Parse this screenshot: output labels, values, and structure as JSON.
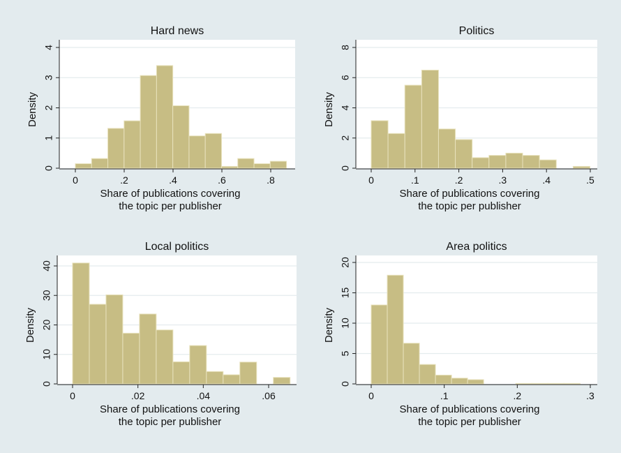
{
  "chart_data": [
    {
      "type": "bar",
      "title": "Hard news",
      "xlabel": [
        "Share of publications covering",
        "the topic per publisher"
      ],
      "ylabel": "Density",
      "xlim": [
        0,
        0.88
      ],
      "ylim": [
        0,
        4.2
      ],
      "xticks": [
        0,
        0.2,
        0.4,
        0.6,
        0.8
      ],
      "xtick_labels": [
        "0",
        ".2",
        ".4",
        ".6",
        ".8"
      ],
      "yticks": [
        0,
        1,
        2,
        3,
        4
      ],
      "ytick_labels": [
        "0",
        "1",
        "2",
        "3",
        "4"
      ],
      "grid": true,
      "bin_start": 0,
      "bin_width": 0.0665,
      "values": [
        0.15,
        0.32,
        1.32,
        1.57,
        3.07,
        3.4,
        2.07,
        1.07,
        1.15,
        0.06,
        0.32,
        0.15,
        0.23
      ]
    },
    {
      "type": "bar",
      "title": "Politics",
      "xlabel": [
        "Share of publications covering",
        "the topic per publisher"
      ],
      "ylabel": "Density",
      "xlim": [
        0,
        0.51
      ],
      "ylim": [
        0,
        8.4
      ],
      "xticks": [
        0,
        0.1,
        0.2,
        0.3,
        0.4,
        0.5
      ],
      "xtick_labels": [
        "0",
        ".1",
        ".2",
        ".3",
        ".4",
        ".5"
      ],
      "yticks": [
        0,
        2,
        4,
        6,
        8
      ],
      "ytick_labels": [
        "0",
        "2",
        "4",
        "6",
        "8"
      ],
      "grid": true,
      "bin_start": 0,
      "bin_width": 0.0384,
      "values": [
        3.15,
        2.3,
        5.5,
        6.5,
        2.6,
        1.9,
        0.7,
        0.85,
        1.0,
        0.85,
        0.55,
        0,
        0.12
      ]
    },
    {
      "type": "bar",
      "title": "Local politics",
      "xlabel": [
        "Share of publications covering",
        "the topic per publisher"
      ],
      "ylabel": "Density",
      "xlim": [
        0,
        0.067
      ],
      "ylim": [
        0,
        43
      ],
      "xticks": [
        0,
        0.02,
        0.04,
        0.06
      ],
      "xtick_labels": [
        "0",
        ".02",
        ".04",
        ".06"
      ],
      "yticks": [
        0,
        10,
        20,
        30,
        40
      ],
      "ytick_labels": [
        "0",
        "10",
        "20",
        "30",
        "40"
      ],
      "grid": true,
      "bin_start": 0,
      "bin_width": 0.00512,
      "values": [
        41,
        27,
        30.2,
        17.2,
        23.7,
        18.3,
        7.5,
        13,
        4.2,
        3.1,
        7.4,
        0,
        2.2
      ]
    },
    {
      "type": "bar",
      "title": "Area politics",
      "xlabel": [
        "Share of publications covering",
        "the topic per publisher"
      ],
      "ylabel": "Density",
      "xlim": [
        0,
        0.3
      ],
      "ylim": [
        0,
        21
      ],
      "xticks": [
        0,
        0.1,
        0.2,
        0.3
      ],
      "xtick_labels": [
        "0",
        ".1",
        ".2",
        ".3"
      ],
      "yticks": [
        0,
        5,
        10,
        15,
        20
      ],
      "ytick_labels": [
        "0",
        "5",
        "10",
        "15",
        "20"
      ],
      "grid": true,
      "bin_start": 0,
      "bin_width": 0.022,
      "values": [
        13,
        17.9,
        6.7,
        3.2,
        1.45,
        0.95,
        0.7,
        0,
        0,
        0.08,
        0.08,
        0.08,
        0.08
      ]
    }
  ],
  "colors": {
    "background": "#e3ebee",
    "plot_area": "#ffffff",
    "bar_fill": "#c7bd84",
    "bar_edge": "#e8e2bd",
    "grid": "#e4ecee"
  }
}
